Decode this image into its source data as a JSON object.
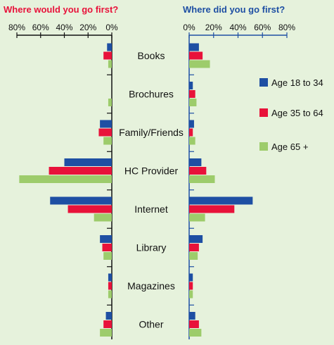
{
  "chart_data": [
    {
      "type": "bar",
      "orientation": "horizontal",
      "direction": "leftward",
      "title": "Where would you go first?",
      "title_color": "#e8123a",
      "axis_color": "#111111",
      "xlim": [
        0,
        80
      ],
      "ticks": [
        "80%",
        "60%",
        "40%",
        "20%",
        "0%"
      ],
      "categories": [
        "Books",
        "Brochures",
        "Family/Friends",
        "HC Provider",
        "Internet",
        "Library",
        "Magazines",
        "Other"
      ],
      "series": [
        {
          "name": "Age 18 to 34",
          "color": "#1e4fa3",
          "values": [
            4,
            0,
            10,
            40,
            52,
            10,
            3,
            5
          ]
        },
        {
          "name": "Age 35 to 64",
          "color": "#e8123a",
          "values": [
            7,
            0,
            11,
            53,
            37,
            8,
            3,
            7
          ]
        },
        {
          "name": "Age 65 +",
          "color": "#9dcc6b",
          "values": [
            3,
            3,
            7,
            78,
            15,
            7,
            3,
            10
          ]
        }
      ]
    },
    {
      "type": "bar",
      "orientation": "horizontal",
      "direction": "rightward",
      "title": "Where did you go first?",
      "title_color": "#1e4fa3",
      "axis_color": "#1e4fa3",
      "xlim": [
        0,
        80
      ],
      "ticks": [
        "0%",
        "20%",
        "40%",
        "60%",
        "80%"
      ],
      "categories": [
        "Books",
        "Brochures",
        "Family/Friends",
        "HC Provider",
        "Internet",
        "Library",
        "Magazines",
        "Other"
      ],
      "series": [
        {
          "name": "Age 18 to 34",
          "color": "#1e4fa3",
          "values": [
            8,
            3,
            4,
            10,
            52,
            11,
            3,
            5
          ]
        },
        {
          "name": "Age 35 to 64",
          "color": "#e8123a",
          "values": [
            11,
            5,
            3,
            14,
            37,
            8,
            3,
            8
          ]
        },
        {
          "name": "Age 65 +",
          "color": "#9dcc6b",
          "values": [
            17,
            6,
            5,
            21,
            13,
            7,
            3,
            10
          ]
        }
      ]
    }
  ]
}
